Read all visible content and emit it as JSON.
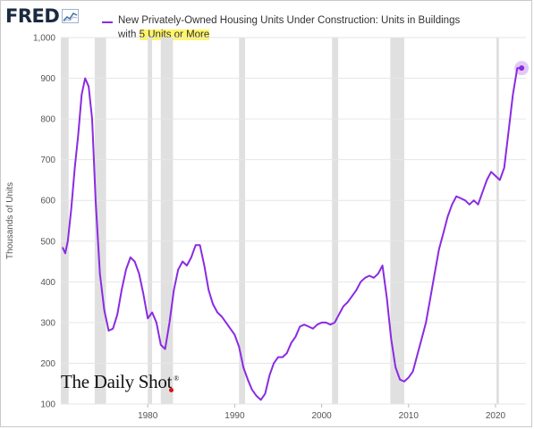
{
  "header": {
    "logo_text": "FRED",
    "logo_icon": "line-chart-icon",
    "title_part1": "New Privately-Owned Housing Units Under Construction: Units in Buildings",
    "title_part2_prefix": "with ",
    "title_part2_highlight": "5 Units or More"
  },
  "watermark": {
    "text": "The Daily Shot",
    "mark": "®"
  },
  "colors": {
    "series": "#8a2be2",
    "recession": "#e0e0e0",
    "highlight": "#fff566"
  },
  "chart_data": {
    "type": "line",
    "title": "New Privately-Owned Housing Units Under Construction: Units in Buildings with 5 Units or More",
    "ylabel": "Thousands of Units",
    "xlabel": "",
    "ylim": [
      100,
      1000
    ],
    "xlim": [
      1970,
      2023.5
    ],
    "y_ticks": [
      "100",
      "200",
      "300",
      "400",
      "500",
      "600",
      "700",
      "800",
      "900",
      "1,000"
    ],
    "y_tick_values": [
      100,
      200,
      300,
      400,
      500,
      600,
      700,
      800,
      900,
      1000
    ],
    "x_ticks": [
      "1980",
      "1990",
      "2000",
      "2010",
      "2020"
    ],
    "x_tick_values": [
      1980,
      1990,
      2000,
      2010,
      2020
    ],
    "grid": "horizontal",
    "recessions": [
      [
        1970.0,
        1970.9
      ],
      [
        1973.9,
        1975.2
      ],
      [
        1980.0,
        1980.5
      ],
      [
        1981.5,
        1982.9
      ],
      [
        1990.5,
        1991.2
      ],
      [
        2001.2,
        2001.9
      ],
      [
        2007.9,
        2009.5
      ],
      [
        2020.1,
        2020.4
      ]
    ],
    "series": [
      {
        "x": [
          1970.2,
          1970.5,
          1970.8,
          1971.2,
          1971.6,
          1972.0,
          1972.4,
          1972.8,
          1973.2,
          1973.6,
          1974.0,
          1974.5,
          1975.0,
          1975.5,
          1976.0,
          1976.5,
          1977.0,
          1977.5,
          1978.0,
          1978.5,
          1979.0,
          1979.5,
          1980.0,
          1980.5,
          1981.0,
          1981.5,
          1982.0,
          1982.5,
          1983.0,
          1983.5,
          1984.0,
          1984.5,
          1985.0,
          1985.5,
          1986.0,
          1986.5,
          1987.0,
          1987.5,
          1988.0,
          1988.5,
          1989.0,
          1989.5,
          1990.0,
          1990.5,
          1991.0,
          1991.5,
          1992.0,
          1992.5,
          1993.0,
          1993.5,
          1994.0,
          1994.5,
          1995.0,
          1995.5,
          1996.0,
          1996.5,
          1997.0,
          1997.5,
          1998.0,
          1998.5,
          1999.0,
          1999.5,
          2000.0,
          2000.5,
          2001.0,
          2001.5,
          2002.0,
          2002.5,
          2003.0,
          2003.5,
          2004.0,
          2004.5,
          2005.0,
          2005.5,
          2006.0,
          2006.5,
          2007.0,
          2007.5,
          2008.0,
          2008.5,
          2009.0,
          2009.5,
          2010.0,
          2010.5,
          2011.0,
          2011.5,
          2012.0,
          2012.5,
          2013.0,
          2013.5,
          2014.0,
          2014.5,
          2015.0,
          2015.5,
          2016.0,
          2016.5,
          2017.0,
          2017.5,
          2018.0,
          2018.5,
          2019.0,
          2019.5,
          2020.0,
          2020.5,
          2021.0,
          2021.5,
          2022.0,
          2022.5,
          2023.0
        ],
        "values": [
          485,
          470,
          500,
          580,
          680,
          760,
          860,
          900,
          880,
          800,
          600,
          420,
          330,
          280,
          285,
          320,
          380,
          430,
          460,
          450,
          420,
          370,
          310,
          325,
          300,
          245,
          235,
          300,
          380,
          430,
          450,
          440,
          460,
          490,
          490,
          440,
          380,
          345,
          325,
          315,
          300,
          285,
          270,
          240,
          190,
          160,
          135,
          120,
          110,
          125,
          170,
          200,
          215,
          215,
          225,
          250,
          265,
          290,
          295,
          290,
          285,
          295,
          300,
          300,
          295,
          300,
          320,
          340,
          350,
          365,
          380,
          400,
          410,
          415,
          410,
          420,
          440,
          360,
          260,
          190,
          160,
          155,
          165,
          180,
          220,
          260,
          300,
          360,
          420,
          480,
          520,
          560,
          590,
          610,
          605,
          600,
          590,
          600,
          590,
          620,
          650,
          670,
          660,
          650,
          680,
          770,
          860,
          925,
          925
        ]
      }
    ]
  }
}
